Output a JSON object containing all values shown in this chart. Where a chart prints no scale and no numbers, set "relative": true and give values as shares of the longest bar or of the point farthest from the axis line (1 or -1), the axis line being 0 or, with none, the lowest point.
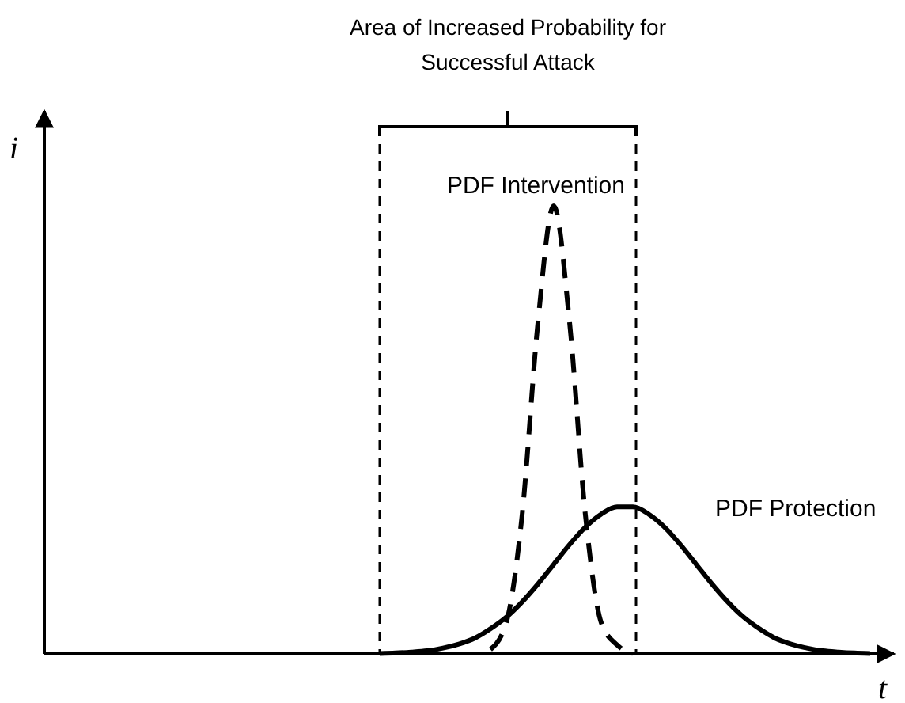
{
  "chart_data": {
    "type": "line",
    "relative": true,
    "xlabel": "t",
    "ylabel": "i",
    "annotations": [
      "Area of Increased Probability for Successful Attack"
    ],
    "categories": [
      null,
      null,
      null,
      null,
      null,
      null,
      null,
      null,
      null,
      null,
      null,
      null,
      null,
      null,
      null,
      null,
      null,
      null,
      null,
      null,
      null,
      null,
      null,
      null,
      null,
      null,
      null,
      null,
      null,
      null,
      null,
      null,
      null,
      null,
      null,
      null,
      null,
      null,
      null,
      null,
      null,
      null,
      null,
      null,
      null,
      null,
      null,
      null,
      null,
      null,
      null,
      null,
      null,
      null
    ],
    "series": [
      {
        "name": "PDF Intervention",
        "color": "#000000",
        "line_style": "dashed",
        "values": [
          null,
          null,
          null,
          null,
          null,
          null,
          null,
          null,
          null,
          null,
          null,
          null,
          null,
          null,
          null,
          null,
          null,
          null,
          null,
          null,
          null,
          null,
          null,
          null,
          null,
          null,
          null,
          null,
          0.01,
          0.07,
          0.31,
          0.74,
          1,
          0.74,
          0.31,
          0.07,
          0.02,
          0,
          null,
          null,
          null,
          null,
          null,
          null,
          null,
          null,
          null,
          null,
          null,
          null,
          null,
          null,
          null,
          null
        ]
      },
      {
        "name": "PDF Protection",
        "color": "#000000",
        "line_style": "solid",
        "values": [
          null,
          null,
          null,
          null,
          null,
          null,
          null,
          null,
          null,
          null,
          null,
          null,
          null,
          null,
          null,
          null,
          null,
          null,
          null,
          null,
          null,
          0.001,
          0.002,
          0.004,
          0.007,
          0.013,
          0.022,
          0.035,
          0.056,
          0.082,
          0.116,
          0.156,
          0.2,
          0.244,
          0.283,
          0.312,
          0.328,
          0.328,
          0.312,
          0.283,
          0.244,
          0.2,
          0.156,
          0.116,
          0.082,
          0.056,
          0.035,
          0.022,
          0.013,
          0.007,
          0.004,
          0.002,
          0.001,
          null
        ]
      }
    ]
  }
}
